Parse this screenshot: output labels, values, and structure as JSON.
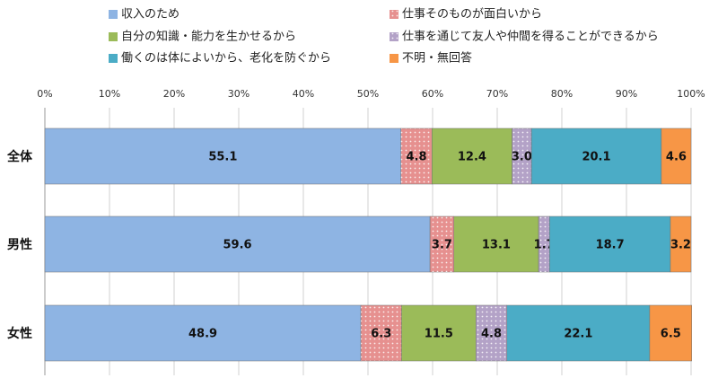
{
  "chart_data": {
    "type": "bar",
    "orientation": "horizontal",
    "stacked": true,
    "percent": true,
    "categories": [
      "全体",
      "男性",
      "女性"
    ],
    "series": [
      {
        "name": "収入のため",
        "values": [
          55.1,
          59.6,
          48.9
        ],
        "color": "#8eb4e3",
        "pattern": "none"
      },
      {
        "name": "仕事そのものが面白いから",
        "values": [
          4.8,
          3.7,
          6.3
        ],
        "color": "#e6908f",
        "pattern": "dots"
      },
      {
        "name": "自分の知識・能力を生かせるから",
        "values": [
          12.4,
          13.1,
          11.5
        ],
        "color": "#9bbb59",
        "pattern": "none"
      },
      {
        "name": "仕事を通じて友人や仲間を得ることができるから",
        "values": [
          3.0,
          1.7,
          4.8
        ],
        "color": "#b3a2c7",
        "pattern": "dots"
      },
      {
        "name": "働くのは体によいから、老化を防ぐから",
        "values": [
          20.1,
          18.7,
          22.1
        ],
        "color": "#4bacc6",
        "pattern": "none"
      },
      {
        "name": "不明・無回答",
        "values": [
          4.6,
          3.2,
          6.5
        ],
        "color": "#f79646",
        "pattern": "none"
      }
    ],
    "data_labels": [
      [
        "55.1",
        "4.8",
        "12.4",
        "3.0",
        "20.1",
        "4.6"
      ],
      [
        "59.6",
        "3.7",
        "13.1",
        "1.7",
        "18.7",
        "3.2"
      ],
      [
        "48.9",
        "6.3",
        "11.5",
        "4.8",
        "22.1",
        "6.5"
      ]
    ],
    "x_ticks": [
      "0%",
      "10%",
      "20%",
      "30%",
      "40%",
      "50%",
      "60%",
      "70%",
      "80%",
      "90%",
      "100%"
    ],
    "xlim": [
      0,
      100
    ],
    "grid": true,
    "legend_position": "top"
  }
}
